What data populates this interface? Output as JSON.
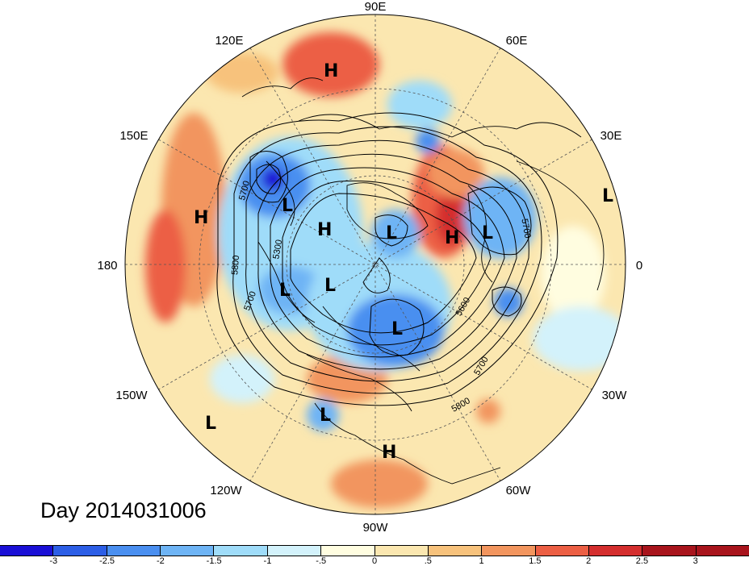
{
  "map": {
    "projection": "north-polar-stereographic",
    "longitude_labels": [
      {
        "id": "90e",
        "text": "90E"
      },
      {
        "id": "60e",
        "text": "60E"
      },
      {
        "id": "30e",
        "text": "30E"
      },
      {
        "id": "0",
        "text": "0"
      },
      {
        "id": "30w",
        "text": "30W"
      },
      {
        "id": "60w",
        "text": "60W"
      },
      {
        "id": "90w",
        "text": "90W"
      },
      {
        "id": "120w",
        "text": "120W"
      },
      {
        "id": "150w",
        "text": "150W"
      },
      {
        "id": "180",
        "text": "180"
      },
      {
        "id": "150e",
        "text": "150E"
      },
      {
        "id": "120e",
        "text": "120E"
      }
    ],
    "pressure_centers": [
      {
        "type": "H",
        "text": "H",
        "region": "central-siberia"
      },
      {
        "type": "L",
        "text": "L",
        "region": "kamchatka"
      },
      {
        "type": "H",
        "text": "H",
        "region": "east-siberian-sea"
      },
      {
        "type": "H",
        "text": "H",
        "region": "north-pacific"
      },
      {
        "type": "L",
        "text": "L",
        "region": "arctic-ocean"
      },
      {
        "type": "H",
        "text": "H",
        "region": "scandinavia-russia"
      },
      {
        "type": "L",
        "text": "L",
        "region": "europe"
      },
      {
        "type": "L",
        "text": "L",
        "region": "eastern-atlantic"
      },
      {
        "type": "L",
        "text": "L",
        "region": "alaska"
      },
      {
        "type": "L",
        "text": "L",
        "region": "yukon"
      },
      {
        "type": "L",
        "text": "L",
        "region": "hudson-bay"
      },
      {
        "type": "L",
        "text": "L",
        "region": "mexico"
      },
      {
        "type": "L",
        "text": "L",
        "region": "eastern-pacific"
      },
      {
        "type": "H",
        "text": "H",
        "region": "central-america"
      }
    ],
    "contour_labels": [
      {
        "text": "5700"
      },
      {
        "text": "5300"
      },
      {
        "text": "5800"
      },
      {
        "text": "5700"
      },
      {
        "text": "5700"
      },
      {
        "text": "5600"
      },
      {
        "text": "5700"
      },
      {
        "text": "5800"
      }
    ],
    "contour_interval_gpm": 100,
    "contour_range_gpm": [
      5000,
      5800
    ]
  },
  "date_label": "Day 2014031006",
  "colorbar": {
    "colors": [
      "#1a0fd6",
      "#2c5ee6",
      "#4a8ff0",
      "#6eb4f5",
      "#9fdcf9",
      "#d3f2fb",
      "#fffde0",
      "#fbe7b0",
      "#f7c27c",
      "#f2955e",
      "#ec5f44",
      "#d42e2e",
      "#a8141c"
    ],
    "tick_labels": [
      "-3",
      "-2.5",
      "-2",
      "-1.5",
      "-1",
      "-.5",
      "0",
      ".5",
      "1",
      "1.5",
      "2",
      "2.5",
      "3"
    ]
  }
}
